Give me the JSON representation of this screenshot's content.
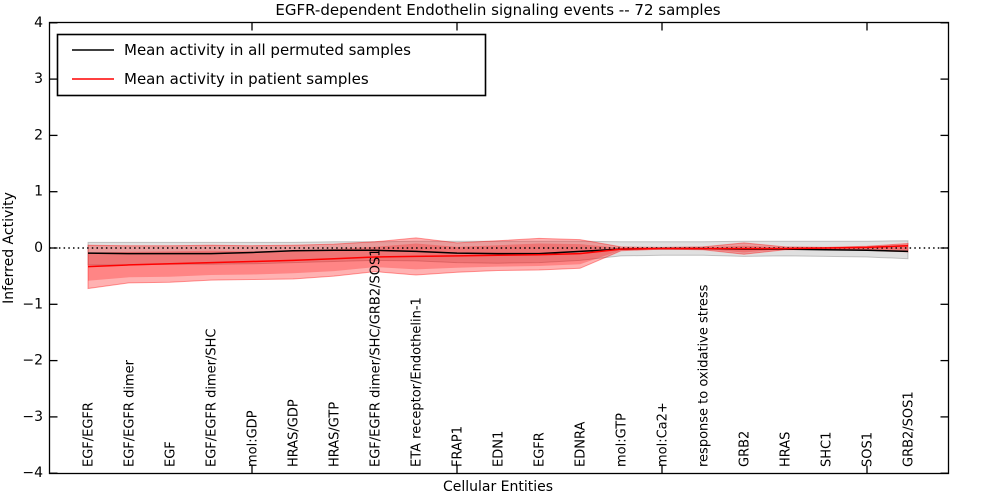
{
  "figure": {
    "background": "#ffffff",
    "frame_color": "#000000"
  },
  "chart_data": {
    "type": "line",
    "title": "EGFR-dependent Endothelin signaling events -- 72 samples",
    "xlabel": "Cellular Entities",
    "ylabel": "Inferred Activity",
    "ylim": [
      -4,
      4
    ],
    "yticks": [
      4,
      3,
      2,
      1,
      0,
      -1,
      -2,
      -3,
      -4
    ],
    "grid": false,
    "legend_position": "upper left",
    "zero_line": {
      "y": 0,
      "style": "dotted",
      "color": "#000000"
    },
    "categories": [
      "EGF/EGFR",
      "EGF/EGFR dimer",
      "EGF",
      "EGF/EGFR dimer/SHC",
      "mol:GDP",
      "HRAS/GDP",
      "HRAS/GTP",
      "EGF/EGFR dimer/SHC/GRB2/SOS1",
      "ETA receptor/Endothelin-1",
      "FRAP1",
      "EDN1",
      "EGFR",
      "EDNRA",
      "mol:GTP",
      "mol:Ca2+",
      "response to oxidative stress",
      "GRB2",
      "HRAS",
      "SHC1",
      "SOS1",
      "GRB2/SOS1"
    ],
    "series": [
      {
        "name": "Mean activity in all permuted samples",
        "color": "#000000",
        "band_color": "#000000",
        "band_opacity": 0.12,
        "values": [
          -0.09,
          -0.1,
          -0.1,
          -0.1,
          -0.08,
          -0.05,
          -0.04,
          -0.04,
          -0.06,
          -0.09,
          -0.1,
          -0.1,
          -0.06,
          -0.02,
          -0.01,
          -0.01,
          -0.02,
          -0.02,
          -0.03,
          -0.04,
          -0.06
        ],
        "band_upper": [
          0.1,
          0.1,
          0.1,
          0.1,
          0.1,
          0.1,
          0.11,
          0.11,
          0.12,
          0.12,
          0.12,
          0.12,
          0.12,
          0.11,
          0.11,
          0.11,
          0.12,
          0.12,
          0.12,
          0.12,
          0.13
        ],
        "band_lower": [
          -0.3,
          -0.3,
          -0.29,
          -0.29,
          -0.28,
          -0.26,
          -0.24,
          -0.22,
          -0.23,
          -0.26,
          -0.27,
          -0.26,
          -0.22,
          -0.14,
          -0.13,
          -0.13,
          -0.15,
          -0.14,
          -0.15,
          -0.16,
          -0.19
        ]
      },
      {
        "name": "Mean activity in patient samples",
        "color": "#ff0000",
        "band_color": "#ff0000",
        "band_opacity": 0.3,
        "values": [
          -0.33,
          -0.3,
          -0.28,
          -0.26,
          -0.24,
          -0.22,
          -0.19,
          -0.16,
          -0.15,
          -0.14,
          -0.13,
          -0.12,
          -0.1,
          -0.02,
          -0.01,
          -0.01,
          -0.01,
          -0.01,
          0.0,
          0.01,
          0.04
        ],
        "band_upper": [
          0.05,
          0.04,
          0.04,
          0.05,
          0.04,
          0.05,
          0.07,
          0.11,
          0.18,
          0.09,
          0.13,
          0.17,
          0.15,
          0.02,
          0.01,
          0.02,
          0.09,
          0.02,
          0.01,
          0.03,
          0.08
        ],
        "band_lower": [
          -0.72,
          -0.62,
          -0.61,
          -0.57,
          -0.56,
          -0.55,
          -0.5,
          -0.42,
          -0.48,
          -0.43,
          -0.4,
          -0.39,
          -0.36,
          -0.05,
          -0.02,
          -0.03,
          -0.11,
          -0.03,
          -0.02,
          -0.04,
          -0.07
        ],
        "band_inner_upper": [
          -0.08,
          -0.07,
          -0.06,
          -0.05,
          -0.06,
          -0.05,
          -0.02,
          0.02,
          0.08,
          0.02,
          0.05,
          0.08,
          0.07,
          0.0,
          0.0,
          0.01,
          0.04,
          0.01,
          0.0,
          0.02,
          0.06
        ],
        "band_inner_lower": [
          -0.58,
          -0.52,
          -0.51,
          -0.48,
          -0.47,
          -0.45,
          -0.41,
          -0.34,
          -0.38,
          -0.35,
          -0.33,
          -0.32,
          -0.29,
          -0.04,
          -0.01,
          -0.02,
          -0.08,
          -0.02,
          -0.01,
          -0.03,
          -0.06
        ],
        "band_inner_opacity": 0.25
      }
    ]
  }
}
